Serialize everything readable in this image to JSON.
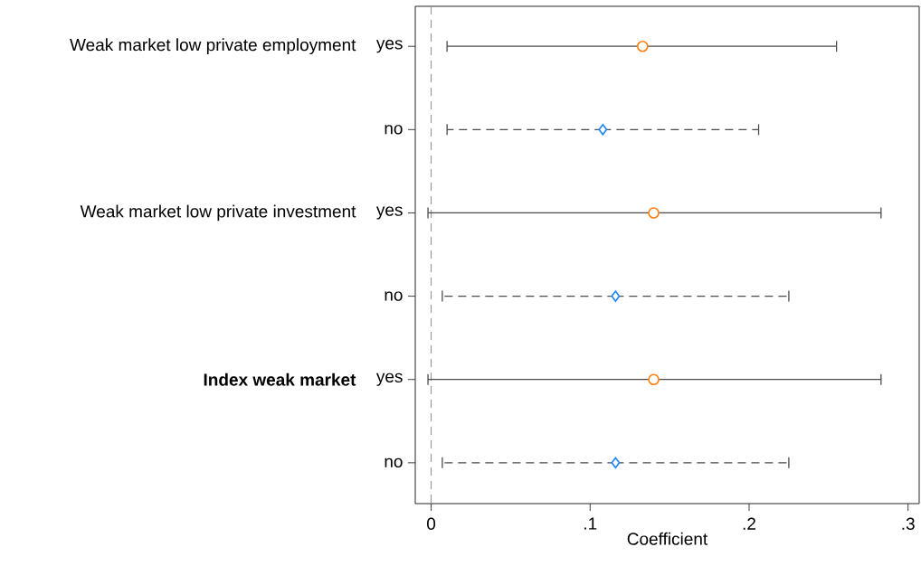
{
  "chart_data": {
    "type": "scatter",
    "orientation": "horizontal",
    "xlabel": "Coefficient",
    "categories": [
      "yes",
      "no",
      "yes",
      "no",
      "yes",
      "no"
    ],
    "annotations": [
      "Weak market low private employment",
      "Weak market low private investment",
      "**Index weak market**"
    ],
    "xlim": [
      -0.01,
      0.307
    ],
    "xticks": [
      0,
      {
        "value": 0.1,
        "label": ".1"
      },
      {
        "value": 0.2,
        "label": ".2"
      },
      {
        "value": 0.3,
        "label": ".3"
      }
    ],
    "ref_lines": [
      {
        "axis": "x",
        "value": 0,
        "color": "#8c8c8c",
        "line_style": "dashed"
      }
    ],
    "grid": false,
    "series": [
      {
        "color": "#ff7f0e",
        "marker": "circle",
        "line_style": "solid",
        "values": [
          0.133,
          null,
          0.14,
          null,
          0.14,
          null
        ],
        "errors": [
          [
            0.01,
            0.255
          ],
          null,
          [
            -0.002,
            0.283
          ],
          null,
          [
            -0.002,
            0.283
          ],
          null
        ]
      },
      {
        "color": "#1a85ff",
        "marker": "diamond",
        "line_style": "dashed",
        "values": [
          null,
          0.108,
          null,
          0.116,
          null,
          0.116
        ],
        "errors": [
          null,
          [
            0.01,
            0.206
          ],
          null,
          [
            0.007,
            0.225
          ],
          null,
          [
            0.007,
            0.225
          ]
        ]
      }
    ]
  }
}
